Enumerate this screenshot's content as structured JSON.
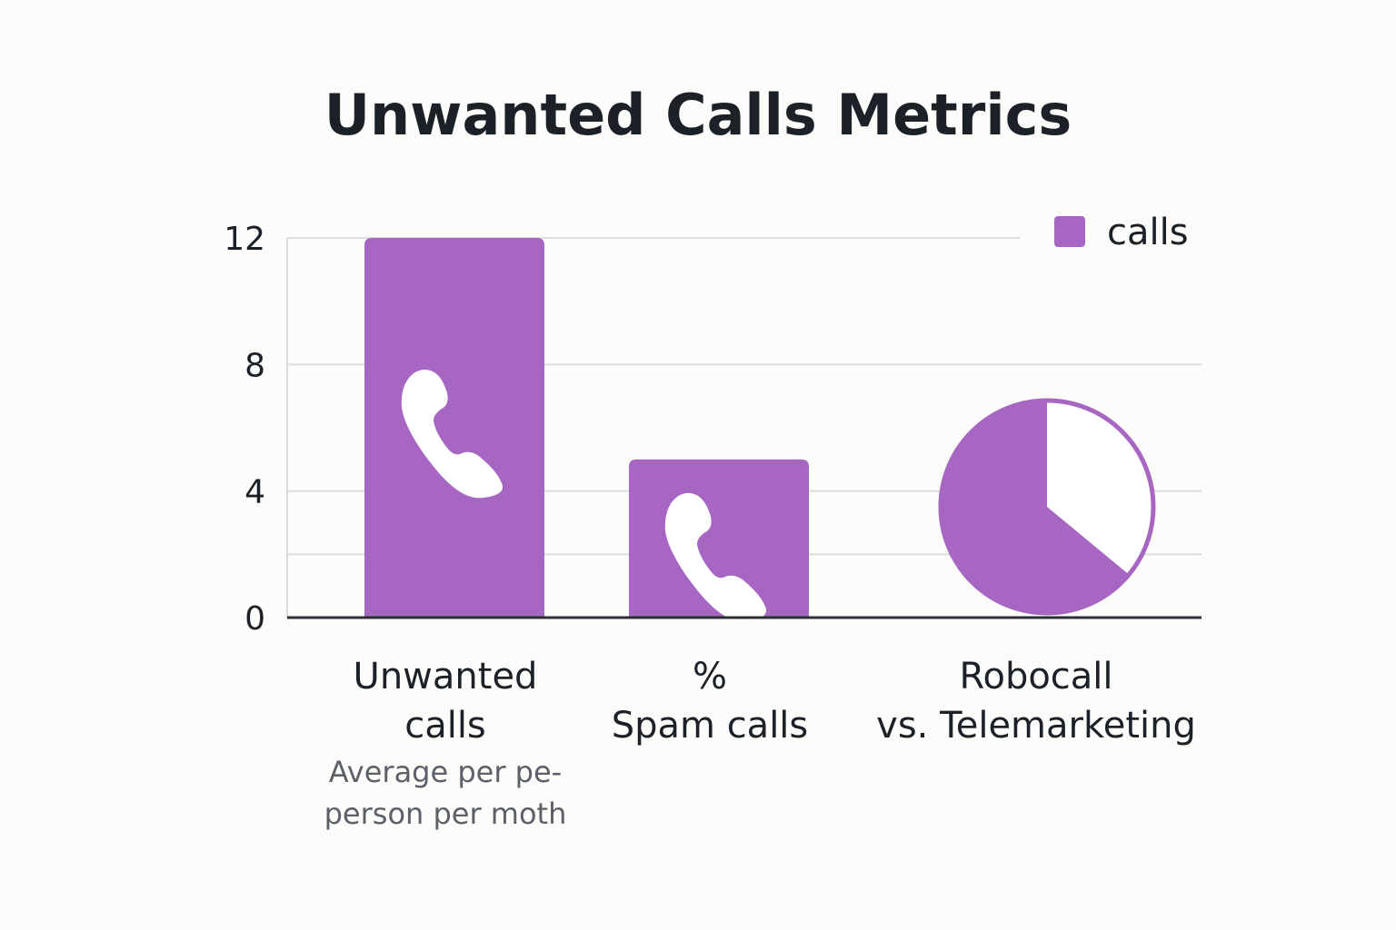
{
  "chart_data": {
    "type": "bar",
    "title": "Unwanted Calls Metrics",
    "ylim": [
      0,
      12
    ],
    "yticks": [
      0,
      4,
      8,
      12
    ],
    "grid": true,
    "legend": {
      "position": "top-right",
      "label": "calls"
    },
    "categories": [
      {
        "label_lines": [
          "Unwanted",
          "calls"
        ],
        "sublabel_lines": [
          "Average per pe-",
          "person per moth"
        ],
        "value": 12,
        "icon": "phone-icon"
      },
      {
        "label_lines": [
          "%",
          "Spam calls"
        ],
        "sublabel_lines": [],
        "value": 5,
        "icon": "phone-icon"
      },
      {
        "label_lines": [
          "Robocall",
          "vs. Telemarketing"
        ],
        "sublabel_lines": [],
        "mark": "pie",
        "pie_fraction": 0.64
      }
    ],
    "colors": {
      "bar": "#a666c2",
      "pie_rest": "#ffffff",
      "grid": "#dcdcdc",
      "axis": "#2a2d33"
    }
  }
}
